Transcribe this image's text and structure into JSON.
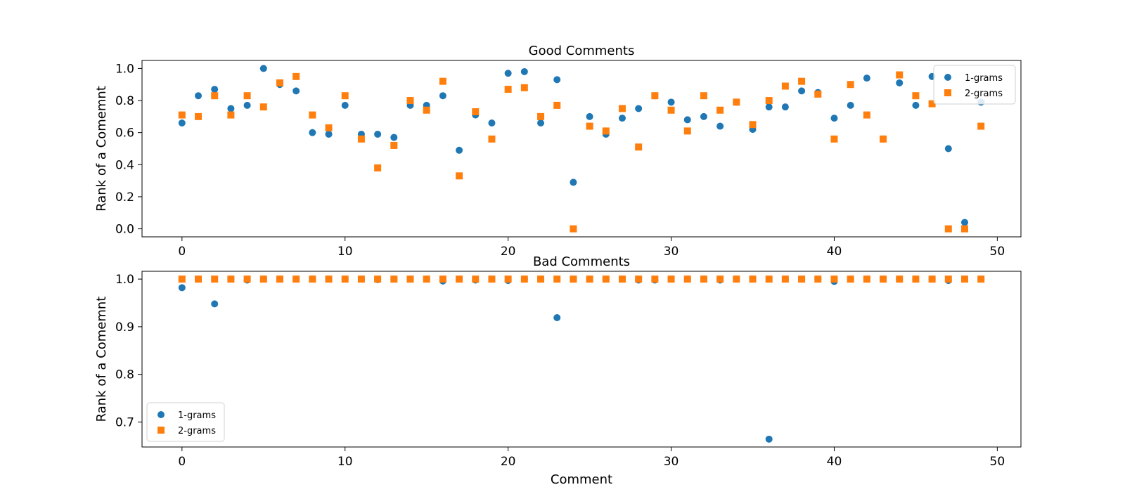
{
  "chart_data": [
    {
      "type": "scatter",
      "title": "Good Comments",
      "xlabel": "",
      "ylabel": "Rank of a Comemnt",
      "xlim": [
        -2.45,
        51.45
      ],
      "ylim": [
        -0.05,
        1.05
      ],
      "xticks": [
        0,
        10,
        20,
        30,
        40,
        50
      ],
      "yticks": [
        0.0,
        0.2,
        0.4,
        0.6,
        0.8,
        1.0
      ],
      "ytick_labels": [
        "0.0",
        "0.2",
        "0.4",
        "0.6",
        "0.8",
        "1.0"
      ],
      "legend_position": "top-right",
      "grid": false,
      "x": [
        0,
        1,
        2,
        3,
        4,
        5,
        6,
        7,
        8,
        9,
        10,
        11,
        12,
        13,
        14,
        15,
        16,
        17,
        18,
        19,
        20,
        21,
        22,
        23,
        24,
        25,
        26,
        27,
        28,
        29,
        30,
        31,
        32,
        33,
        34,
        35,
        36,
        37,
        38,
        39,
        40,
        41,
        42,
        43,
        44,
        45,
        46,
        47,
        48,
        49
      ],
      "series": [
        {
          "name": "1-grams",
          "marker": "circle",
          "color": "#1f77b4",
          "values": [
            0.66,
            0.83,
            0.87,
            0.75,
            0.77,
            1.0,
            0.9,
            0.86,
            0.6,
            0.59,
            0.77,
            0.59,
            0.59,
            0.57,
            0.77,
            0.77,
            0.83,
            0.49,
            0.71,
            0.66,
            0.97,
            0.98,
            0.66,
            0.93,
            0.29,
            0.7,
            0.59,
            0.69,
            0.75,
            0.83,
            0.79,
            0.68,
            0.7,
            0.64,
            0.79,
            0.62,
            0.76,
            0.76,
            0.86,
            0.85,
            0.69,
            0.77,
            0.94,
            0.56,
            0.91,
            0.77,
            0.95,
            0.5,
            0.04,
            0.79
          ]
        },
        {
          "name": "2-grams",
          "marker": "square",
          "color": "#ff7f0e",
          "values": [
            0.71,
            0.7,
            0.83,
            0.71,
            0.83,
            0.76,
            0.91,
            0.95,
            0.71,
            0.63,
            0.83,
            0.56,
            0.38,
            0.52,
            0.8,
            0.74,
            0.92,
            0.33,
            0.73,
            0.56,
            0.87,
            0.88,
            0.7,
            0.77,
            0.0,
            0.64,
            0.61,
            0.75,
            0.51,
            0.83,
            0.74,
            0.61,
            0.83,
            0.74,
            0.79,
            0.65,
            0.8,
            0.89,
            0.92,
            0.84,
            0.56,
            0.9,
            0.71,
            0.56,
            0.96,
            0.83,
            0.78,
            0.0,
            0.0,
            0.64
          ]
        }
      ]
    },
    {
      "type": "scatter",
      "title": "Bad Comments",
      "xlabel": "Comment",
      "ylabel": "Rank of a Comemnt",
      "xlim": [
        -2.45,
        51.45
      ],
      "ylim": [
        0.6475,
        1.0164
      ],
      "xticks": [
        0,
        10,
        20,
        30,
        40,
        50
      ],
      "yticks": [
        0.7,
        0.8,
        0.9,
        1.0
      ],
      "ytick_labels": [
        "0.7",
        "0.8",
        "0.9",
        "1.0"
      ],
      "legend_position": "lower-left",
      "grid": false,
      "x": [
        0,
        1,
        2,
        3,
        4,
        5,
        6,
        7,
        8,
        9,
        10,
        11,
        12,
        13,
        14,
        15,
        16,
        17,
        18,
        19,
        20,
        21,
        22,
        23,
        24,
        25,
        26,
        27,
        28,
        29,
        30,
        31,
        32,
        33,
        34,
        35,
        36,
        37,
        38,
        39,
        40,
        41,
        42,
        43,
        44,
        45,
        46,
        47,
        48,
        49
      ],
      "series": [
        {
          "name": "1-grams",
          "marker": "circle",
          "color": "#1f77b4",
          "values": [
            0.982,
            1.0,
            0.948,
            1.0,
            0.998,
            1.0,
            1.0,
            1.0,
            1.0,
            1.0,
            1.0,
            1.0,
            0.999,
            1.0,
            1.0,
            1.0,
            0.996,
            1.0,
            0.998,
            1.0,
            0.997,
            1.0,
            1.0,
            0.919,
            1.0,
            1.0,
            1.0,
            1.0,
            0.998,
            0.998,
            1.0,
            1.0,
            1.0,
            0.998,
            1.0,
            1.0,
            0.664,
            1.0,
            1.0,
            1.0,
            0.995,
            1.0,
            1.0,
            1.0,
            1.0,
            1.0,
            1.0,
            0.997,
            1.0,
            1.0
          ]
        },
        {
          "name": "2-grams",
          "marker": "square",
          "color": "#ff7f0e",
          "values": [
            1.0,
            1.0,
            1.0,
            1.0,
            1.0,
            1.0,
            1.0,
            1.0,
            1.0,
            1.0,
            1.0,
            1.0,
            1.0,
            1.0,
            1.0,
            1.0,
            1.0,
            1.0,
            1.0,
            1.0,
            1.0,
            1.0,
            1.0,
            1.0,
            1.0,
            1.0,
            1.0,
            1.0,
            1.0,
            1.0,
            1.0,
            1.0,
            1.0,
            1.0,
            1.0,
            1.0,
            1.0,
            1.0,
            1.0,
            1.0,
            1.0,
            1.0,
            1.0,
            1.0,
            1.0,
            1.0,
            1.0,
            1.0,
            1.0,
            1.0
          ]
        }
      ]
    }
  ]
}
